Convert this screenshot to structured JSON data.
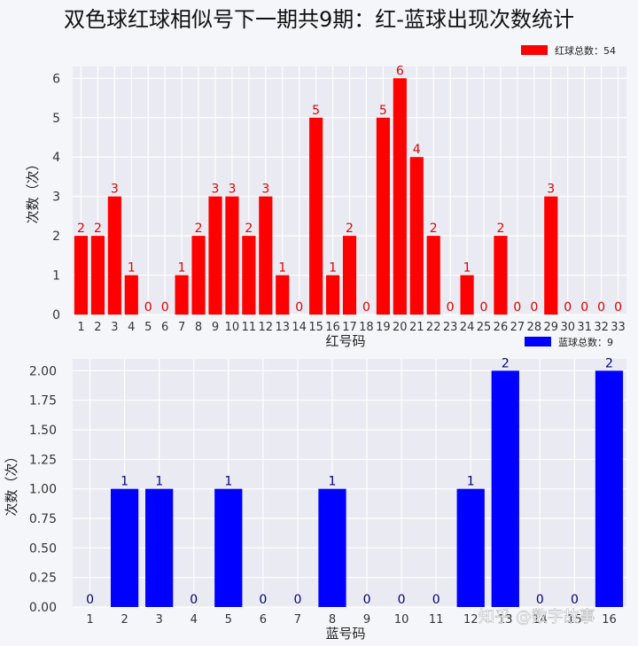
{
  "title": "双色球红球相似号下一期共9期：红-蓝球出现次数统计",
  "watermark": "知乎 @数字故事",
  "chart_data": [
    {
      "type": "bar",
      "xlabel": "红号码",
      "ylabel": "次数（次）",
      "legend": {
        "label": "红球总数：54",
        "position": "top-right"
      },
      "color": "#ff0000",
      "label_color": "#e00000",
      "categories": [
        "1",
        "2",
        "3",
        "4",
        "5",
        "6",
        "7",
        "8",
        "9",
        "10",
        "11",
        "12",
        "13",
        "14",
        "15",
        "16",
        "17",
        "18",
        "19",
        "20",
        "21",
        "22",
        "23",
        "24",
        "25",
        "26",
        "27",
        "28",
        "29",
        "30",
        "31",
        "32",
        "33"
      ],
      "values": [
        2,
        2,
        3,
        1,
        0,
        0,
        1,
        2,
        3,
        3,
        2,
        3,
        1,
        0,
        5,
        1,
        2,
        0,
        5,
        6,
        4,
        2,
        0,
        1,
        0,
        2,
        0,
        0,
        3,
        0,
        0,
        0,
        0
      ],
      "ylim": [
        0,
        6.3
      ],
      "yticks": [
        "0",
        "1",
        "2",
        "3",
        "4",
        "5",
        "6"
      ],
      "grid": true
    },
    {
      "type": "bar",
      "xlabel": "蓝号码",
      "ylabel": "次数（次）",
      "legend": {
        "label": "蓝球总数：9",
        "position": "top-right"
      },
      "color": "#0000ff",
      "label_color": "#000080",
      "categories": [
        "1",
        "2",
        "3",
        "4",
        "5",
        "6",
        "7",
        "8",
        "9",
        "10",
        "11",
        "12",
        "13",
        "14",
        "15",
        "16"
      ],
      "values": [
        0,
        1,
        1,
        0,
        1,
        0,
        0,
        1,
        0,
        0,
        0,
        1,
        2,
        0,
        0,
        2
      ],
      "ylim": [
        0,
        2.1
      ],
      "yticks": [
        "0.00",
        "0.25",
        "0.50",
        "0.75",
        "1.00",
        "1.25",
        "1.50",
        "1.75",
        "2.00"
      ],
      "grid": true
    }
  ]
}
